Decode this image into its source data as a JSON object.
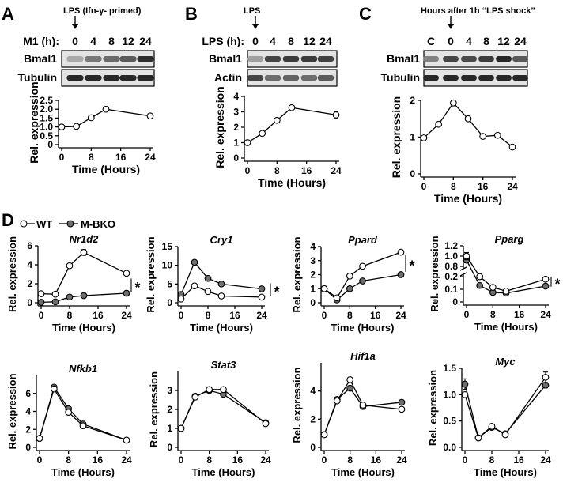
{
  "panels_top": [
    {
      "letter": "A",
      "treatment_label": "LPS (Ifn-γ- primed)",
      "time_axis_label": "M1 (h):",
      "lanes": [
        "0",
        "4",
        "8",
        "12",
        "24"
      ],
      "blots": [
        "Bmal1",
        "Tubulin"
      ],
      "band_intensity": [
        [
          0.3,
          0.55,
          0.62,
          0.7,
          0.92
        ],
        [
          0.95,
          0.95,
          0.95,
          0.95,
          0.95
        ]
      ]
    },
    {
      "letter": "B",
      "treatment_label": "LPS",
      "time_axis_label": "LPS (h):",
      "lanes": [
        "0",
        "4",
        "8",
        "12",
        "24"
      ],
      "blots": [
        "Bmal1",
        "Actin"
      ],
      "band_intensity": [
        [
          0.35,
          0.8,
          0.85,
          0.85,
          0.82
        ],
        [
          0.8,
          0.6,
          0.65,
          0.6,
          0.7
        ]
      ]
    },
    {
      "letter": "C",
      "treatment_label": "Hours after 1h “LPS shock”",
      "time_axis_label": "",
      "lanes": [
        "C",
        "0",
        "4",
        "8",
        "12",
        "24"
      ],
      "blots": [
        "Bmal1",
        "Tubulin"
      ],
      "band_intensity": [
        [
          0.5,
          0.8,
          0.78,
          0.85,
          0.95,
          0.7
        ],
        [
          0.95,
          0.95,
          0.95,
          0.95,
          0.95,
          0.95
        ]
      ]
    }
  ],
  "panel_D_letter": "D",
  "legend": {
    "wt": "WT",
    "ko": "M-BKO"
  },
  "sig_mark": "*",
  "chart_data": [
    {
      "id": "A",
      "type": "line",
      "title": "",
      "xlabel": "Time (Hours)",
      "ylabel": "Rel. expression",
      "xlim": [
        0,
        24
      ],
      "ylim": [
        0,
        2.5
      ],
      "xticks": [
        "0",
        "8",
        "16",
        "24"
      ],
      "yticks": [
        "0",
        "0.5",
        "1.0",
        "1.5",
        "2.0",
        "2.5"
      ],
      "series": [
        {
          "name": "Bmal1",
          "x": [
            0,
            4,
            8,
            12,
            24
          ],
          "y": [
            1.0,
            1.03,
            1.52,
            2.0,
            1.62
          ]
        }
      ]
    },
    {
      "id": "B",
      "type": "line",
      "title": "",
      "xlabel": "Time (Hours)",
      "ylabel": "Rel. expression",
      "xlim": [
        0,
        24
      ],
      "ylim": [
        0,
        4
      ],
      "xticks": [
        "0",
        "8",
        "16",
        "24"
      ],
      "yticks": [
        "0",
        "1",
        "2",
        "3",
        "4"
      ],
      "series": [
        {
          "name": "Bmal1",
          "x": [
            0,
            4,
            8,
            12,
            24
          ],
          "y": [
            1.0,
            1.6,
            2.45,
            3.27,
            2.8
          ],
          "err": [
            0.05,
            0.05,
            0.12,
            0.1,
            0.2
          ]
        }
      ]
    },
    {
      "id": "C",
      "type": "line",
      "title": "",
      "xlabel": "Time (Hours)",
      "ylabel": "Rel. expression",
      "xlim": [
        0,
        24
      ],
      "ylim": [
        0,
        2
      ],
      "xticks": [
        "0",
        "8",
        "16",
        "24"
      ],
      "yticks": [
        "0",
        "1",
        "2"
      ],
      "series": [
        {
          "name": "Bmal1",
          "x": [
            0,
            4,
            8,
            12,
            16,
            20,
            24
          ],
          "y": [
            0.98,
            1.35,
            1.93,
            1.5,
            1.02,
            1.05,
            0.73
          ]
        }
      ]
    },
    {
      "id": "Nr1d2",
      "type": "line",
      "title": "Nr1d2",
      "xlabel": "Time (Hours)",
      "ylabel": "Rel. expression",
      "xlim": [
        0,
        24
      ],
      "ylim": [
        0,
        6
      ],
      "xticks": [
        "0",
        "8",
        "16",
        "24"
      ],
      "yticks": [
        "0",
        "2",
        "4",
        "6"
      ],
      "series": [
        {
          "name": "WT",
          "x": [
            0,
            4,
            8,
            12,
            24
          ],
          "y": [
            0.95,
            0.9,
            3.9,
            5.3,
            3.1
          ],
          "err": [
            0,
            0,
            0,
            0.3,
            0
          ]
        },
        {
          "name": "M-BKO",
          "x": [
            0,
            4,
            8,
            12,
            24
          ],
          "y": [
            0.05,
            0.1,
            0.6,
            0.75,
            1.0
          ]
        }
      ]
    },
    {
      "id": "Cry1",
      "type": "line",
      "title": "Cry1",
      "xlabel": "Time (Hours)",
      "ylabel": "Rel. expression",
      "xlim": [
        0,
        24
      ],
      "ylim": [
        0,
        15
      ],
      "xticks": [
        "0",
        "8",
        "16",
        "24"
      ],
      "yticks": [
        "0",
        "5",
        "10",
        "15"
      ],
      "series": [
        {
          "name": "WT",
          "x": [
            0,
            4,
            8,
            12,
            24
          ],
          "y": [
            1.0,
            4.5,
            3.0,
            1.8,
            1.5
          ]
        },
        {
          "name": "M-BKO",
          "x": [
            0,
            4,
            8,
            12,
            24
          ],
          "y": [
            2.2,
            10.8,
            6.5,
            5.0,
            3.7
          ],
          "err": [
            0,
            0.6,
            0,
            0,
            0
          ]
        }
      ]
    },
    {
      "id": "Ppard",
      "type": "line",
      "title": "Ppard",
      "xlabel": "Time (Hours)",
      "ylabel": "Rel. expression",
      "xlim": [
        0,
        24
      ],
      "ylim": [
        0,
        4
      ],
      "xticks": [
        "0",
        "8",
        "16",
        "24"
      ],
      "yticks": [
        "0",
        "1",
        "2",
        "3",
        "4"
      ],
      "series": [
        {
          "name": "WT",
          "x": [
            0,
            4,
            8,
            12,
            24
          ],
          "y": [
            1.0,
            0.35,
            1.9,
            2.6,
            3.6
          ]
        },
        {
          "name": "M-BKO",
          "x": [
            0,
            4,
            8,
            12,
            24
          ],
          "y": [
            1.0,
            0.2,
            1.0,
            1.55,
            2.0
          ]
        }
      ]
    },
    {
      "id": "Pparg",
      "type": "line",
      "title": "Pparg",
      "xlabel": "Time (Hours)",
      "ylabel": "Rel. expression",
      "xlim": [
        0,
        24
      ],
      "ylim": [
        0,
        1.2
      ],
      "xticks": [
        "0",
        "8",
        "16",
        "24"
      ],
      "yticks_lower": [
        "0",
        "0.1",
        "0.2"
      ],
      "yticks_upper": [
        "0.8",
        "1.0",
        "1.2"
      ],
      "axis_break": [
        0.2,
        0.8
      ],
      "series": [
        {
          "name": "WT",
          "x": [
            0,
            4,
            8,
            12,
            24
          ],
          "y": [
            1.0,
            0.2,
            0.115,
            0.085,
            0.18
          ],
          "err": [
            0.07,
            0,
            0,
            0,
            0.015
          ]
        },
        {
          "name": "M-BKO",
          "x": [
            0,
            4,
            8,
            12,
            24
          ],
          "y": [
            0.92,
            0.13,
            0.075,
            0.07,
            0.125
          ],
          "err": [
            0.05,
            0.01,
            0,
            0,
            0
          ]
        }
      ]
    },
    {
      "id": "Nfkb1",
      "type": "line",
      "title": "Nfkb1",
      "xlabel": "Time (Hours)",
      "ylabel": "Rel. expression",
      "xlim": [
        0,
        24
      ],
      "ylim": [
        0,
        8
      ],
      "xticks": [
        "0",
        "8",
        "16",
        "24"
      ],
      "yticks": [
        "0",
        "2",
        "4",
        "6"
      ],
      "series": [
        {
          "name": "WT",
          "x": [
            0,
            4,
            8,
            12,
            24
          ],
          "y": [
            1.0,
            6.5,
            3.9,
            2.4,
            0.8
          ]
        },
        {
          "name": "M-BKO",
          "x": [
            0,
            4,
            8,
            12,
            24
          ],
          "y": [
            1.0,
            6.7,
            4.3,
            2.6,
            0.8
          ]
        }
      ]
    },
    {
      "id": "Stat3",
      "type": "line",
      "title": "Stat3",
      "xlabel": "Time (Hours)",
      "ylabel": "Rel. expression",
      "xlim": [
        0,
        24
      ],
      "ylim": [
        0,
        4
      ],
      "xticks": [
        "0",
        "8",
        "16",
        "24"
      ],
      "yticks": [
        "0",
        "1",
        "2",
        "3"
      ],
      "series": [
        {
          "name": "WT",
          "x": [
            0,
            4,
            8,
            12,
            24
          ],
          "y": [
            1.0,
            2.65,
            3.05,
            3.05,
            1.25
          ],
          "err": [
            0,
            0,
            0,
            0.12,
            0
          ]
        },
        {
          "name": "M-BKO",
          "x": [
            0,
            4,
            8,
            12,
            24
          ],
          "y": [
            1.0,
            2.7,
            3.0,
            2.8,
            1.3
          ]
        }
      ]
    },
    {
      "id": "Hif1a",
      "type": "line",
      "title": "Hif1a",
      "xlabel": "Time (Hours)",
      "ylabel": "Rel. expression",
      "xlim": [
        0,
        24
      ],
      "ylim": [
        0,
        6
      ],
      "xticks": [
        "0",
        "8",
        "16",
        "24"
      ],
      "yticks": [
        "0",
        "2",
        "4"
      ],
      "series": [
        {
          "name": "WT",
          "x": [
            0,
            4,
            8,
            12,
            24
          ],
          "y": [
            0.9,
            3.3,
            4.8,
            3.0,
            2.7
          ]
        },
        {
          "name": "M-BKO",
          "x": [
            0,
            4,
            8,
            12,
            24
          ],
          "y": [
            0.9,
            3.4,
            4.2,
            2.9,
            3.2
          ]
        }
      ]
    },
    {
      "id": "Myc",
      "type": "line",
      "title": "Myc",
      "xlabel": "Time (Hours)",
      "ylabel": "Rel. expression",
      "xlim": [
        0,
        24
      ],
      "ylim": [
        0,
        1.5
      ],
      "xticks": [
        "0",
        "8",
        "16",
        "24"
      ],
      "yticks": [
        "0.0",
        "0.5",
        "1.0",
        "1.5"
      ],
      "series": [
        {
          "name": "WT",
          "x": [
            0,
            4,
            8,
            12,
            24
          ],
          "y": [
            1.0,
            0.18,
            0.4,
            0.24,
            1.33
          ],
          "err": [
            0,
            0,
            0,
            0,
            0.1
          ]
        },
        {
          "name": "M-BKO",
          "x": [
            0,
            4,
            8,
            12,
            24
          ],
          "y": [
            1.2,
            0.18,
            0.38,
            0.26,
            1.18
          ],
          "err": [
            0.1,
            0,
            0,
            0,
            0.05
          ]
        }
      ]
    }
  ]
}
